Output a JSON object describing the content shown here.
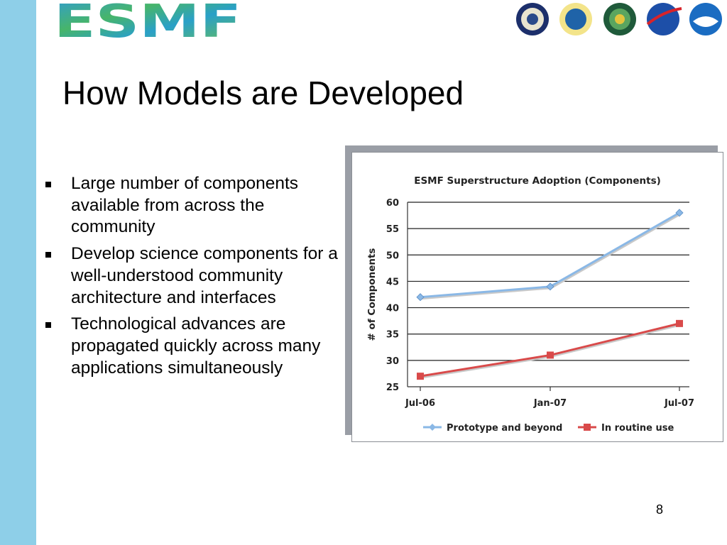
{
  "slide": {
    "logo_text": "ESMF",
    "agency_logos": [
      "dod-seal-icon",
      "nsf-logo-icon",
      "doe-seal-icon",
      "nasa-logo-icon",
      "noaa-logo-icon"
    ],
    "title": "How Models are Developed",
    "bullets": [
      "Large number of components available from across the community",
      "Develop science components for a well-understood community architecture and interfaces",
      "Technological advances are propagated quickly across many applications simultaneously"
    ],
    "page_number": "8",
    "colors": {
      "band": "#8ecfe8",
      "series1": "#8ab8e6",
      "series2": "#d94a4a"
    }
  },
  "chart_data": {
    "type": "line",
    "title": "ESMF Superstructure Adoption (Components)",
    "ylabel": "# of Components",
    "xlabel": "",
    "categories": [
      "Jul-06",
      "Jan-07",
      "Jul-07"
    ],
    "ylim": [
      25,
      60
    ],
    "yticks": [
      25,
      30,
      35,
      40,
      45,
      50,
      55,
      60
    ],
    "grid": true,
    "legend_position": "bottom",
    "series": [
      {
        "name": "Prototype and beyond",
        "values": [
          42,
          44,
          58
        ],
        "color": "#8ab8e6",
        "marker": "diamond"
      },
      {
        "name": "In routine use",
        "values": [
          27,
          31,
          37
        ],
        "color": "#d94a4a",
        "marker": "square"
      }
    ]
  }
}
